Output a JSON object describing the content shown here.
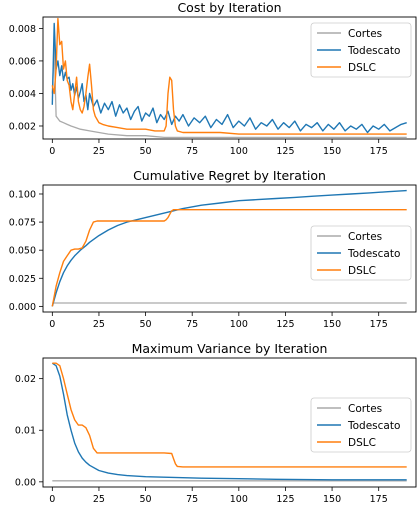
{
  "chart_data": [
    {
      "type": "line",
      "title": "Cost by Iteration",
      "xlabel": "",
      "ylabel": "",
      "xlim": [
        -5,
        195
      ],
      "ylim": [
        0.0012,
        0.0087
      ],
      "xticks": [
        0,
        25,
        50,
        75,
        100,
        125,
        150,
        175
      ],
      "yticks": [
        0.002,
        0.004,
        0.006,
        0.008
      ],
      "ytick_labels": [
        "0.002",
        "0.004",
        "0.006",
        "0.008"
      ],
      "legend": "top-right",
      "series": [
        {
          "name": "Cortes",
          "color": "#aaaaaa",
          "x": [
            0,
            1,
            2,
            4,
            6,
            8,
            10,
            15,
            20,
            25,
            30,
            40,
            50,
            60,
            70,
            80,
            100,
            120,
            150,
            180,
            190
          ],
          "y": [
            0.004,
            0.007,
            0.0026,
            0.0023,
            0.0022,
            0.0021,
            0.002,
            0.0018,
            0.0017,
            0.0016,
            0.0015,
            0.0014,
            0.0014,
            0.0013,
            0.0013,
            0.0013,
            0.0013,
            0.0013,
            0.0013,
            0.0013,
            0.0013
          ]
        },
        {
          "name": "Todescato",
          "color": "#1f77b4",
          "x": [
            0,
            1,
            2,
            3,
            4,
            5,
            6,
            7,
            8,
            9,
            10,
            11,
            12,
            13,
            14,
            15,
            16,
            17,
            18,
            19,
            20,
            22,
            24,
            26,
            28,
            30,
            32,
            34,
            36,
            38,
            40,
            42,
            44,
            46,
            48,
            50,
            52,
            54,
            56,
            58,
            60,
            62,
            64,
            66,
            68,
            70,
            73,
            76,
            79,
            82,
            85,
            88,
            91,
            94,
            97,
            100,
            103,
            106,
            109,
            112,
            115,
            118,
            121,
            124,
            127,
            130,
            133,
            136,
            139,
            142,
            145,
            148,
            151,
            154,
            157,
            160,
            163,
            166,
            169,
            172,
            175,
            178,
            181,
            184,
            187,
            190
          ],
          "y": [
            0.0033,
            0.0083,
            0.0055,
            0.006,
            0.0051,
            0.0057,
            0.0048,
            0.0053,
            0.0049,
            0.005,
            0.0042,
            0.0046,
            0.0039,
            0.0044,
            0.0037,
            0.0041,
            0.0046,
            0.0035,
            0.0039,
            0.003,
            0.004,
            0.0032,
            0.0036,
            0.0028,
            0.0034,
            0.003,
            0.0035,
            0.0026,
            0.0033,
            0.0028,
            0.0031,
            0.0024,
            0.0029,
            0.0032,
            0.0023,
            0.0028,
            0.0026,
            0.0031,
            0.0022,
            0.0027,
            0.0024,
            0.0029,
            0.0021,
            0.0026,
            0.0023,
            0.0027,
            0.002,
            0.0025,
            0.0022,
            0.0026,
            0.0019,
            0.0024,
            0.0021,
            0.0027,
            0.0019,
            0.0023,
            0.002,
            0.0025,
            0.0018,
            0.0022,
            0.002,
            0.0024,
            0.0018,
            0.0022,
            0.0019,
            0.0023,
            0.0017,
            0.0021,
            0.0019,
            0.0022,
            0.0017,
            0.0021,
            0.0018,
            0.0022,
            0.0017,
            0.002,
            0.0018,
            0.0021,
            0.0016,
            0.002,
            0.0018,
            0.0021,
            0.0017,
            0.0019,
            0.0021,
            0.0022
          ]
        },
        {
          "name": "DSLC",
          "color": "#ff7f0e",
          "x": [
            0,
            1,
            2,
            3,
            4,
            5,
            6,
            7,
            8,
            9,
            10,
            11,
            12,
            13,
            14,
            15,
            16,
            17,
            18,
            19,
            20,
            21,
            22,
            23,
            24,
            25,
            27,
            30,
            35,
            40,
            45,
            50,
            55,
            60,
            61,
            62,
            63,
            64,
            65,
            66,
            67,
            70,
            75,
            80,
            90,
            100,
            120,
            140,
            160,
            180,
            190
          ],
          "y": [
            0.0045,
            0.004,
            0.0055,
            0.0086,
            0.007,
            0.0072,
            0.0055,
            0.006,
            0.0048,
            0.0045,
            0.0035,
            0.003,
            0.004,
            0.005,
            0.0035,
            0.003,
            0.0028,
            0.0032,
            0.004,
            0.005,
            0.0058,
            0.0045,
            0.003,
            0.0026,
            0.0024,
            0.0022,
            0.0021,
            0.002,
            0.0019,
            0.0018,
            0.0018,
            0.0018,
            0.0017,
            0.0017,
            0.002,
            0.004,
            0.005,
            0.0048,
            0.003,
            0.002,
            0.0017,
            0.0016,
            0.0016,
            0.0016,
            0.0016,
            0.0015,
            0.0015,
            0.0015,
            0.0015,
            0.0015,
            0.0015
          ]
        }
      ]
    },
    {
      "type": "line",
      "title": "Cumulative Regret by Iteration",
      "xlabel": "",
      "ylabel": "",
      "xlim": [
        -5,
        195
      ],
      "ylim": [
        -0.005,
        0.108
      ],
      "xticks": [
        0,
        25,
        50,
        75,
        100,
        125,
        150,
        175
      ],
      "yticks": [
        0.0,
        0.025,
        0.05,
        0.075,
        0.1
      ],
      "ytick_labels": [
        "0.000",
        "0.025",
        "0.050",
        "0.075",
        "0.100"
      ],
      "legend": "center-right",
      "series": [
        {
          "name": "Cortes",
          "color": "#aaaaaa",
          "x": [
            0,
            190
          ],
          "y": [
            0.003,
            0.003
          ]
        },
        {
          "name": "Todescato",
          "color": "#1f77b4",
          "x": [
            0,
            2,
            4,
            6,
            8,
            10,
            12,
            15,
            18,
            20,
            25,
            30,
            35,
            40,
            45,
            50,
            55,
            60,
            65,
            70,
            80,
            90,
            100,
            110,
            120,
            130,
            140,
            150,
            160,
            170,
            180,
            190
          ],
          "y": [
            0.0,
            0.012,
            0.022,
            0.03,
            0.036,
            0.041,
            0.045,
            0.05,
            0.054,
            0.057,
            0.063,
            0.068,
            0.072,
            0.075,
            0.077,
            0.079,
            0.081,
            0.083,
            0.085,
            0.087,
            0.09,
            0.092,
            0.094,
            0.095,
            0.096,
            0.097,
            0.098,
            0.099,
            0.1,
            0.101,
            0.102,
            0.103
          ]
        },
        {
          "name": "DSLC",
          "color": "#ff7f0e",
          "x": [
            0,
            2,
            4,
            6,
            8,
            10,
            12,
            14,
            16,
            18,
            20,
            22,
            24,
            30,
            40,
            50,
            60,
            61,
            62,
            63,
            64,
            65,
            66,
            70,
            80,
            100,
            120,
            150,
            190
          ],
          "y": [
            0.0,
            0.018,
            0.03,
            0.04,
            0.045,
            0.05,
            0.051,
            0.051,
            0.052,
            0.058,
            0.068,
            0.075,
            0.076,
            0.076,
            0.076,
            0.076,
            0.076,
            0.077,
            0.079,
            0.082,
            0.085,
            0.086,
            0.086,
            0.086,
            0.086,
            0.086,
            0.086,
            0.086,
            0.086
          ]
        }
      ]
    },
    {
      "type": "line",
      "title": "Maximum Variance by Iteration",
      "xlabel": "",
      "ylabel": "",
      "xlim": [
        -5,
        195
      ],
      "ylim": [
        -0.001,
        0.024
      ],
      "xticks": [
        0,
        25,
        50,
        75,
        100,
        125,
        150,
        175
      ],
      "yticks": [
        0.0,
        0.01,
        0.02
      ],
      "ytick_labels": [
        "0.00",
        "0.01",
        "0.02"
      ],
      "legend": "top-right",
      "series": [
        {
          "name": "Cortes",
          "color": "#aaaaaa",
          "x": [
            0,
            190
          ],
          "y": [
            0.0002,
            0.0002
          ]
        },
        {
          "name": "Todescato",
          "color": "#1f77b4",
          "x": [
            0,
            2,
            4,
            6,
            8,
            10,
            12,
            14,
            16,
            18,
            20,
            25,
            30,
            35,
            40,
            50,
            60,
            70,
            80,
            100,
            120,
            150,
            190
          ],
          "y": [
            0.023,
            0.0225,
            0.0205,
            0.017,
            0.013,
            0.01,
            0.0075,
            0.0058,
            0.0046,
            0.0038,
            0.0032,
            0.0022,
            0.0017,
            0.0014,
            0.0012,
            0.001,
            0.0009,
            0.0008,
            0.0007,
            0.0006,
            0.0005,
            0.0004,
            0.0004
          ]
        },
        {
          "name": "DSLC",
          "color": "#ff7f0e",
          "x": [
            0,
            2,
            4,
            6,
            8,
            10,
            12,
            14,
            16,
            18,
            20,
            22,
            24,
            26,
            30,
            40,
            50,
            60,
            64,
            65,
            66,
            67,
            70,
            80,
            100,
            150,
            190
          ],
          "y": [
            0.023,
            0.023,
            0.0225,
            0.02,
            0.017,
            0.014,
            0.012,
            0.011,
            0.011,
            0.0105,
            0.009,
            0.0065,
            0.0056,
            0.0056,
            0.0056,
            0.0056,
            0.0056,
            0.0056,
            0.0055,
            0.0045,
            0.0035,
            0.003,
            0.0029,
            0.0029,
            0.0029,
            0.0029,
            0.0029
          ]
        }
      ]
    }
  ]
}
